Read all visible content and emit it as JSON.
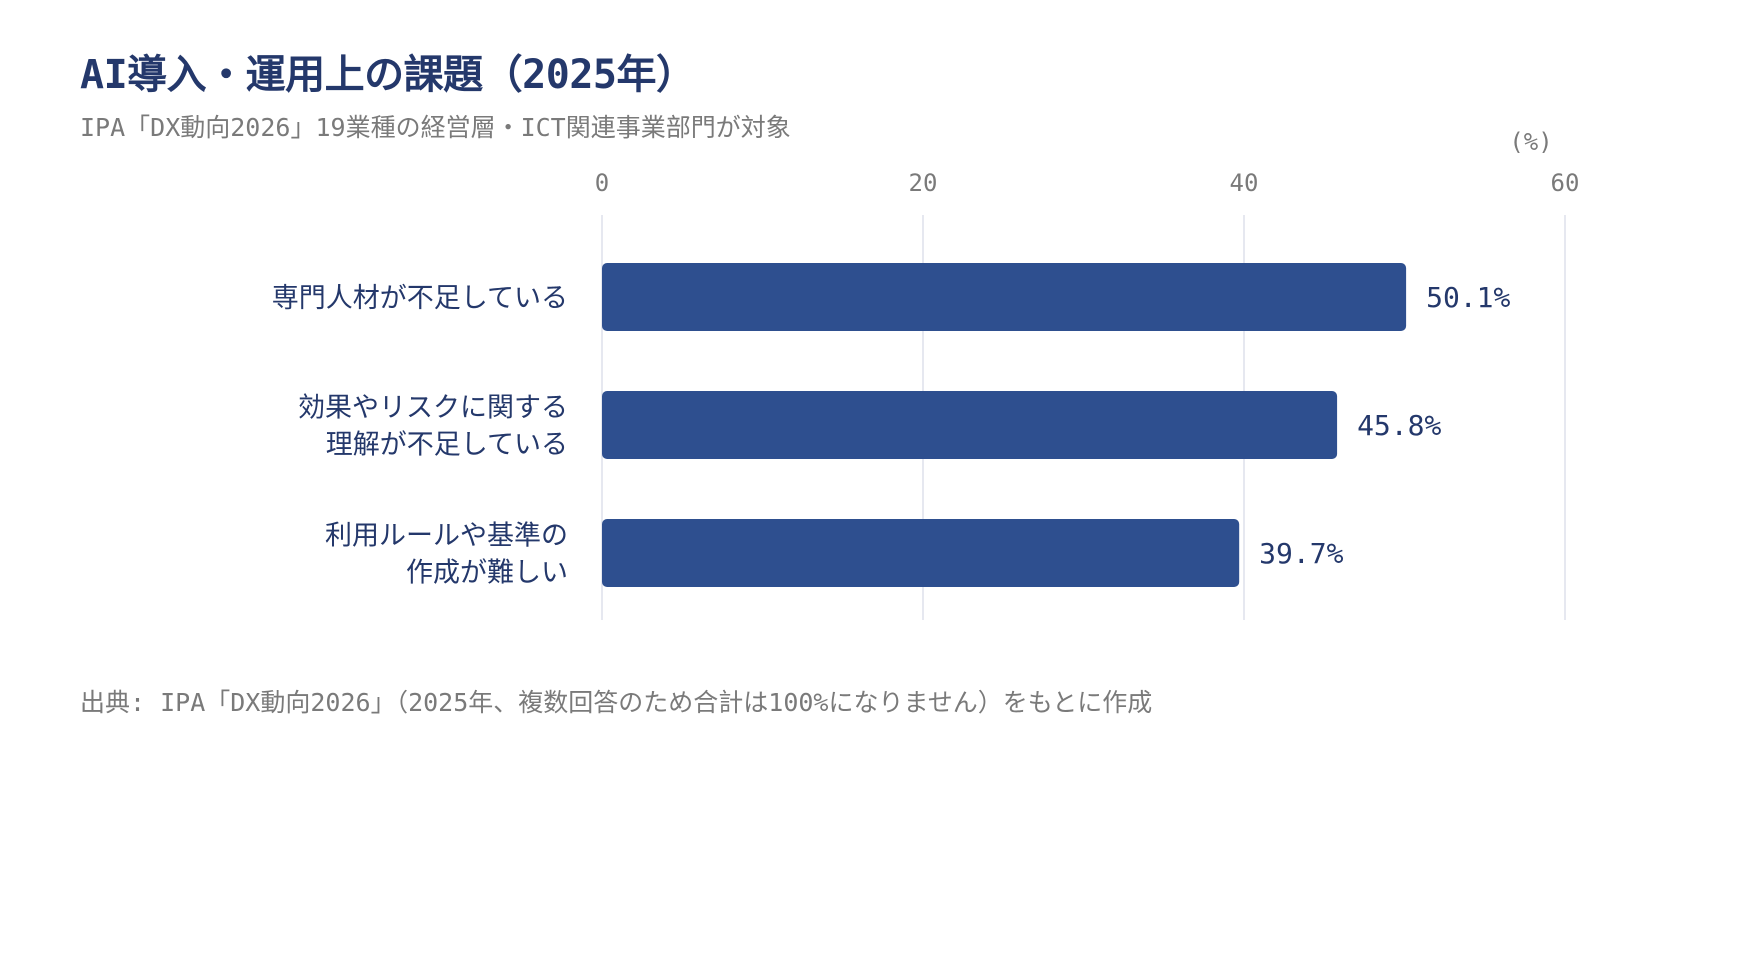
{
  "header": {
    "title": "AI導入・運用上の課題（2025年）",
    "subtitle": "IPA「DX動向2026」19業種の経営層・ICT関連事業部門が対象"
  },
  "footer": {
    "source": "出典: IPA「DX動向2026」（2025年、複数回答のため合計は100%になりません）をもとに作成"
  },
  "chart_data": {
    "type": "bar",
    "orientation": "horizontal",
    "title": "AI導入・運用上の課題（2025年）",
    "subtitle": "IPA「DX動向2026」19業種の経営層・ICT関連事業部門が対象",
    "unit": "(%)",
    "categories": [
      [
        "専門人材が不足している"
      ],
      [
        "効果やリスクに関する",
        "理解が不足している"
      ],
      [
        "利用ルールや基準の",
        "作成が難しい"
      ]
    ],
    "values": [
      50.1,
      45.8,
      39.7
    ],
    "value_labels": [
      "50.1%",
      "45.8%",
      "39.7%"
    ],
    "xlim": [
      0,
      60
    ],
    "xticks": [
      0,
      20,
      40,
      60
    ],
    "xtick_labels": [
      "0",
      "20",
      "40",
      "60"
    ],
    "grid": true,
    "bar_color": "#2e4f8f",
    "grid_color": "#dde1ec",
    "text_color": "#24386b",
    "muted_color": "#7a7a7a"
  }
}
